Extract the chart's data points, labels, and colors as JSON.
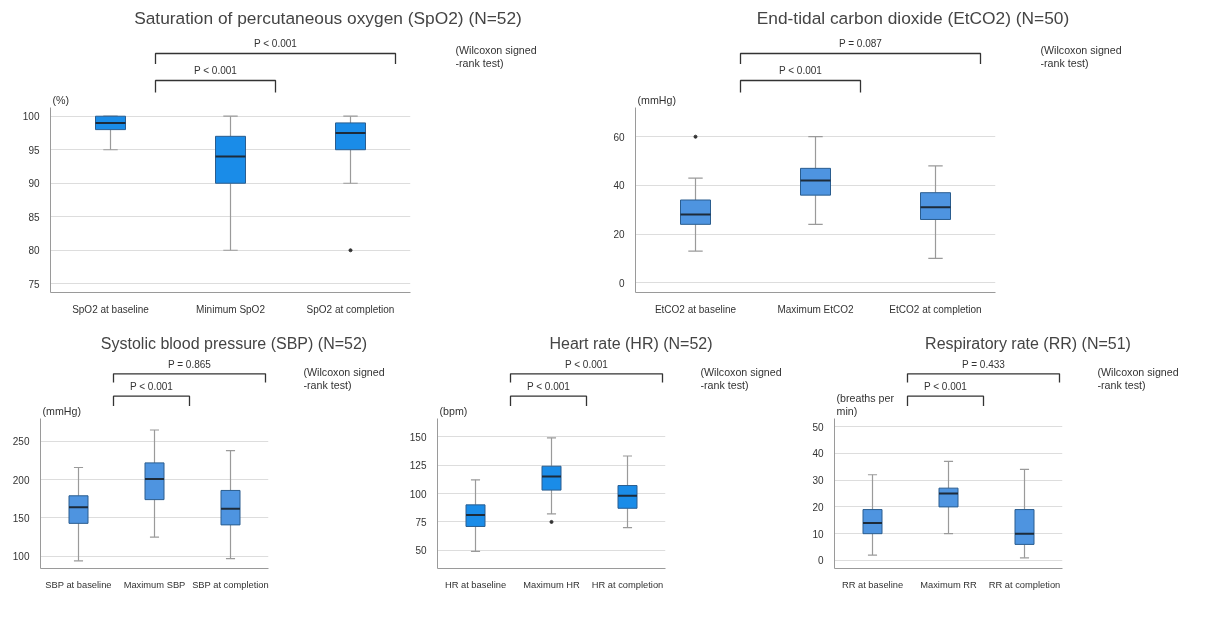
{
  "chart_data": [
    {
      "type": "box",
      "title": "Saturation of percutaneous oxygen (SpO2) (N=52)",
      "ylabel": "(%)",
      "categories": [
        "SpO2 at baseline",
        "Minimum SpO2",
        "SpO2 at completion"
      ],
      "series": [
        {
          "color": "#1a8ce8",
          "boxes": [
            {
              "low": 95,
              "q1": 98,
              "median": 99,
              "q3": 100,
              "high": 100
            },
            {
              "low": 80,
              "q1": 90,
              "median": 94,
              "q3": 97,
              "high": 100
            },
            {
              "low": 90,
              "q1": 95,
              "median": 97.5,
              "q3": 99,
              "high": 100,
              "outliers": [
                80
              ]
            }
          ]
        }
      ],
      "ylim": [
        73.7,
        101.3
      ],
      "yticks": [
        75,
        80,
        85,
        90,
        95,
        100
      ],
      "grid": "y",
      "annotations": [
        "P < 0.001",
        "P < 0.001",
        "(Wilcoxon signed\n-rank test)"
      ]
    },
    {
      "type": "box",
      "title": "End-tidal carbon dioxide (EtCO2) (N=50)",
      "ylabel": "(mmHg)",
      "categories": [
        "EtCO2 at baseline",
        "Maximum EtCO2",
        "EtCO2 at completion"
      ],
      "series": [
        {
          "color": "#4e94e0",
          "boxes": [
            {
              "low": 13,
              "q1": 24,
              "median": 28,
              "q3": 34,
              "high": 43,
              "outliers": [
                60
              ]
            },
            {
              "low": 24,
              "q1": 36,
              "median": 42,
              "q3": 47,
              "high": 60
            },
            {
              "low": 10,
              "q1": 26,
              "median": 31,
              "q3": 37,
              "high": 48
            }
          ]
        }
      ],
      "ylim": [
        -4,
        72
      ],
      "yticks": [
        0,
        20,
        40,
        60
      ],
      "grid": "y",
      "annotations": [
        "P = 0.087",
        "P < 0.001",
        "(Wilcoxon signed\n-rank test)"
      ]
    },
    {
      "type": "box",
      "title": "Systolic blood pressure (SBP) (N=52)",
      "ylabel": "(mmHg)",
      "categories": [
        "SBP at baseline",
        "Maximum SBP",
        "SBP at completion"
      ],
      "series": [
        {
          "color": "#4e94e0",
          "boxes": [
            {
              "low": 94,
              "q1": 143,
              "median": 164,
              "q3": 179,
              "high": 216
            },
            {
              "low": 125,
              "q1": 174,
              "median": 201,
              "q3": 222,
              "high": 265
            },
            {
              "low": 97,
              "q1": 141,
              "median": 162,
              "q3": 186,
              "high": 238
            }
          ]
        }
      ],
      "ylim": [
        84,
        280
      ],
      "yticks": [
        100,
        150,
        200,
        250
      ],
      "grid": "y",
      "annotations": [
        "P = 0.865",
        "P < 0.001",
        "(Wilcoxon signed\n-rank test)"
      ]
    },
    {
      "type": "box",
      "title": "Heart rate (HR) (N=52)",
      "ylabel": "(bpm)",
      "categories": [
        "HR at baseline",
        "Maximum HR",
        "HR at completion"
      ],
      "series": [
        {
          "color": "#1a8ce8",
          "boxes": [
            {
              "low": 49,
              "q1": 71,
              "median": 81,
              "q3": 90,
              "high": 112
            },
            {
              "low": 82,
              "q1": 103,
              "median": 115,
              "q3": 124,
              "high": 149,
              "outliers": [
                75
              ]
            },
            {
              "low": 70,
              "q1": 87,
              "median": 98,
              "q3": 107,
              "high": 133
            }
          ]
        }
      ],
      "ylim": [
        34,
        166
      ],
      "yticks": [
        50,
        75,
        100,
        125,
        150
      ],
      "grid": "y",
      "annotations": [
        "P < 0.001",
        "P < 0.001",
        "(Wilcoxon signed\n-rank test)"
      ]
    },
    {
      "type": "box",
      "title": "Respiratory rate (RR) (N=51)",
      "ylabel": "(breaths per\nmin)",
      "categories": [
        "RR at baseline",
        "Maximum RR",
        "RR at completion"
      ],
      "series": [
        {
          "color": "#4e94e0",
          "boxes": [
            {
              "low": 2,
              "q1": 10,
              "median": 14,
              "q3": 19,
              "high": 32
            },
            {
              "low": 10,
              "q1": 20,
              "median": 25,
              "q3": 27,
              "high": 37
            },
            {
              "low": 1,
              "q1": 6,
              "median": 10,
              "q3": 19,
              "high": 34
            }
          ]
        }
      ],
      "ylim": [
        -3,
        53
      ],
      "yticks": [
        0,
        10,
        20,
        30,
        40,
        50
      ],
      "grid": "y",
      "annotations": [
        "P = 0.433",
        "P < 0.001",
        "(Wilcoxon signed\n-rank test)"
      ]
    }
  ]
}
